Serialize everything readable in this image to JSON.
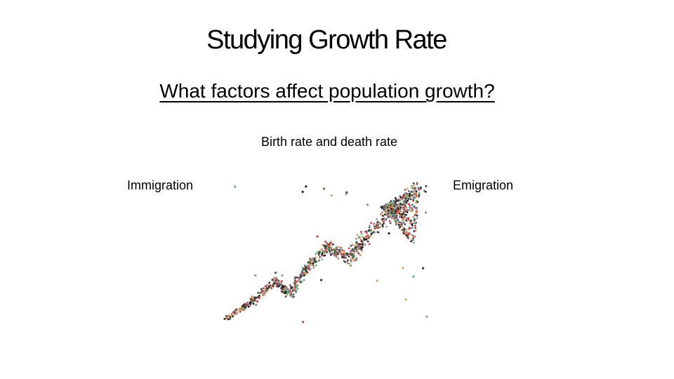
{
  "header": {
    "title": "Studying Growth Rate",
    "subtitle": "What factors affect population growth?"
  },
  "factors": {
    "center": "Birth rate and death rate",
    "left": "Immigration",
    "right": "Emigration"
  }
}
